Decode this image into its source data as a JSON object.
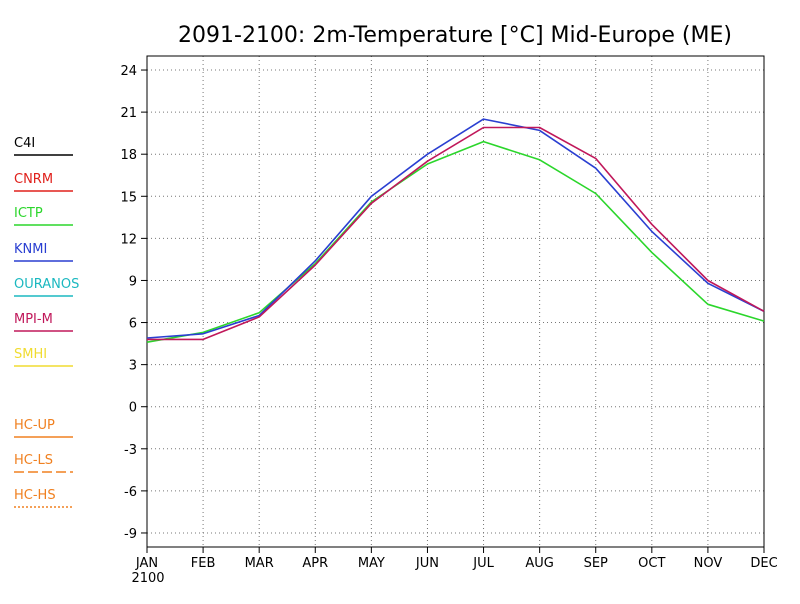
{
  "chart_data": {
    "type": "line",
    "title": "2091-2100: 2m-Temperature [°C] Mid-Europe (ME)",
    "x_year_label": "2100",
    "categories": [
      "JAN",
      "FEB",
      "MAR",
      "APR",
      "MAY",
      "JUN",
      "JUL",
      "AUG",
      "SEP",
      "OCT",
      "NOV",
      "DEC"
    ],
    "ylim": [
      -10,
      25
    ],
    "yticks": [
      -9,
      -6,
      -3,
      0,
      3,
      6,
      9,
      12,
      15,
      18,
      21,
      24
    ],
    "grid": true,
    "legend_placement": "left",
    "legend": [
      {
        "name": "C4I",
        "color": "#000000",
        "style": "solid"
      },
      {
        "name": "CNRM",
        "color": "#e0201b",
        "style": "solid"
      },
      {
        "name": "ICTP",
        "color": "#2bd62b",
        "style": "solid"
      },
      {
        "name": "KNMI",
        "color": "#2a3fd1",
        "style": "solid"
      },
      {
        "name": "OURANOS",
        "color": "#1bb8c0",
        "style": "solid"
      },
      {
        "name": "MPI-M",
        "color": "#c0185a",
        "style": "solid"
      },
      {
        "name": "SMHI",
        "color": "#f0dc30",
        "style": "solid"
      },
      {
        "name": "HC-UP",
        "color": "#f08020",
        "style": "solid"
      },
      {
        "name": "HC-LS",
        "color": "#f08020",
        "style": "dashed"
      },
      {
        "name": "HC-HS",
        "color": "#f08020",
        "style": "dotted"
      }
    ],
    "series": [
      {
        "name": "ICTP",
        "color": "#2bd62b",
        "values": [
          4.6,
          5.3,
          6.7,
          10.2,
          14.6,
          17.3,
          18.9,
          17.6,
          15.2,
          11.0,
          7.3,
          6.1
        ]
      },
      {
        "name": "KNMI",
        "color": "#2a3fd1",
        "values": [
          4.9,
          5.2,
          6.5,
          10.4,
          15.0,
          18.0,
          20.5,
          19.7,
          17.0,
          12.5,
          8.8,
          6.8
        ]
      },
      {
        "name": "MPI-M",
        "color": "#c0185a",
        "values": [
          4.8,
          4.8,
          6.4,
          10.1,
          14.5,
          17.5,
          19.9,
          19.9,
          17.7,
          13.0,
          9.0,
          6.8
        ]
      }
    ]
  }
}
